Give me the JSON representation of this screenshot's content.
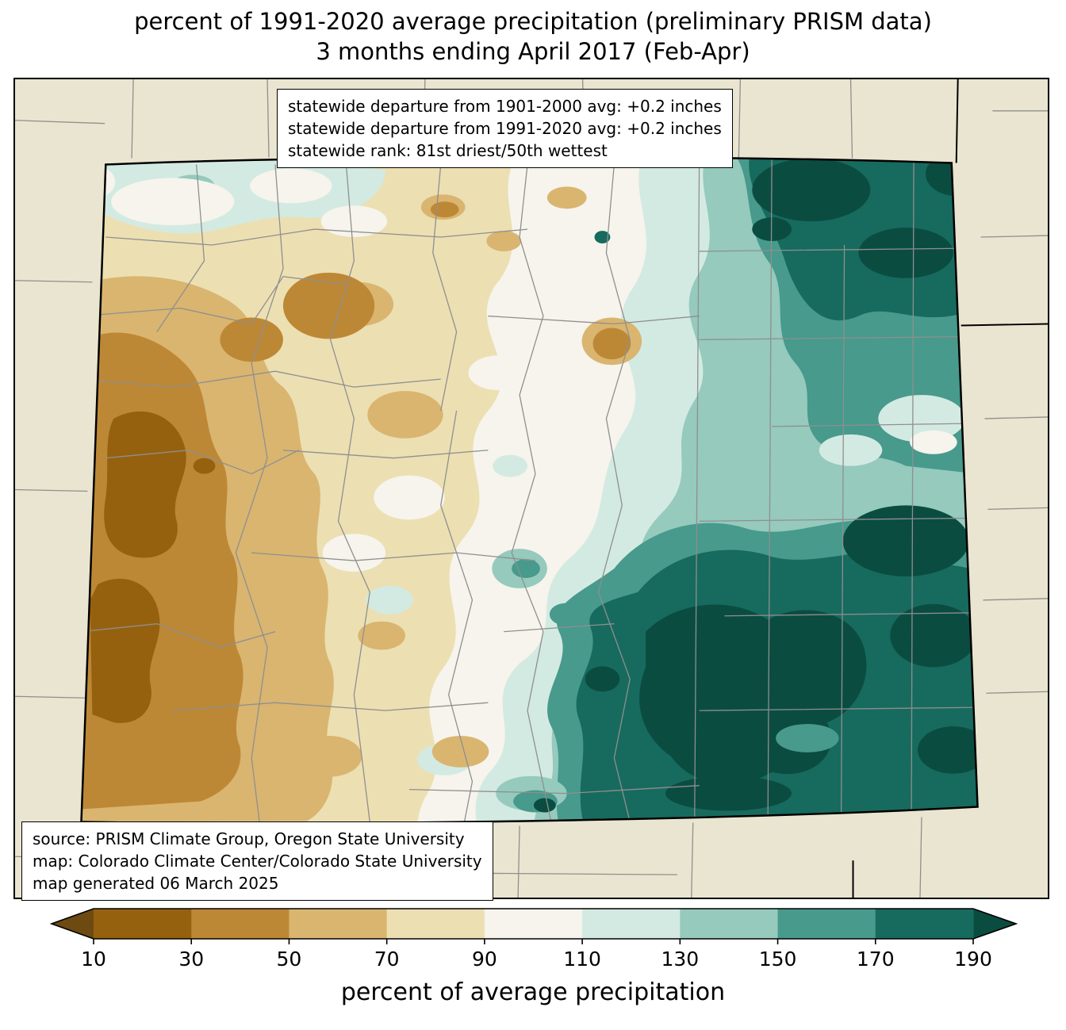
{
  "title": {
    "line1": "percent of 1991-2020 average precipitation (preliminary PRISM data)",
    "line2": "3 months ending April 2017 (Feb-Apr)"
  },
  "stats_box": {
    "line1": "statewide departure from 1901-2000 avg: +0.2 inches",
    "line2": "statewide departure from 1991-2020 avg: +0.2 inches",
    "line3": "statewide rank: 81st driest/50th wettest"
  },
  "source_box": {
    "line1": "source: PRISM Climate Group, Oregon State University",
    "line2": "map: Colorado Climate Center/Colorado State University",
    "line3": "map generated 06 March 2025"
  },
  "colorbar": {
    "label": "percent of average precipitation",
    "ticks": [
      "10",
      "30",
      "50",
      "70",
      "90",
      "110",
      "130",
      "150",
      "170",
      "190"
    ],
    "segment_colors": [
      "#96610f",
      "#bd8836",
      "#d9b570",
      "#ecdfb2",
      "#f6f4ec",
      "#d3eae2",
      "#95cabd",
      "#479a8c",
      "#176a5e"
    ],
    "under_color": "#6d4a11",
    "over_color": "#0b4c41"
  },
  "map": {
    "background_color": "#e9e5d0",
    "county_line_color": "#8f8f8f",
    "state_line_color": "#000000"
  }
}
